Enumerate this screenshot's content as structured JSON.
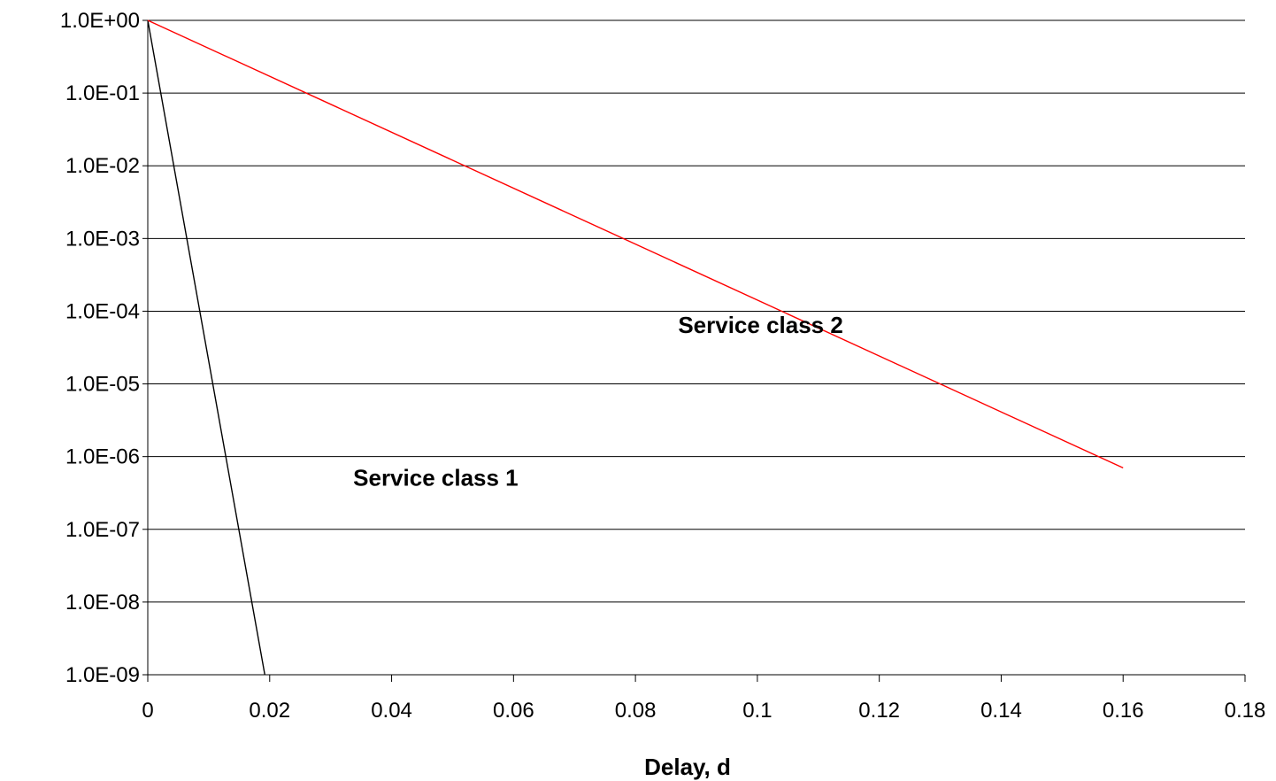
{
  "chart_data": {
    "type": "line",
    "title": "",
    "xlabel": "Delay, d",
    "ylabel": "",
    "xlim": [
      0,
      0.18
    ],
    "ylim": [
      1e-09,
      1
    ],
    "yscale": "log",
    "grid": "horizontal",
    "legend": "none",
    "x_ticks": [
      "0",
      "0.02",
      "0.04",
      "0.06",
      "0.08",
      "0.1",
      "0.12",
      "0.14",
      "0.16",
      "0.18"
    ],
    "x_tick_values": [
      0,
      0.02,
      0.04,
      0.06,
      0.08,
      0.1,
      0.12,
      0.14,
      0.16,
      0.18
    ],
    "y_ticks": [
      "1.0E+00",
      "1.0E-01",
      "1.0E-02",
      "1.0E-03",
      "1.0E-04",
      "1.0E-05",
      "1.0E-06",
      "1.0E-07",
      "1.0E-08",
      "1.0E-09"
    ],
    "y_tick_values": [
      1,
      0.1,
      0.01,
      0.001,
      0.0001,
      1e-05,
      1e-06,
      1e-07,
      1e-08,
      1e-09
    ],
    "series": [
      {
        "name": "Service class 1",
        "color": "#000000",
        "x": [
          0,
          0.0192
        ],
        "y": [
          1,
          1e-09
        ]
      },
      {
        "name": "Service class 2",
        "color": "#ff0000",
        "x": [
          0,
          0.16
        ],
        "y": [
          1,
          7e-07
        ]
      }
    ],
    "annotations": [
      {
        "text": "Service class 2",
        "x": 0.087,
        "y": 5e-05
      },
      {
        "text": "Service class 1",
        "x": 0.0337,
        "y": 4e-07
      }
    ]
  }
}
